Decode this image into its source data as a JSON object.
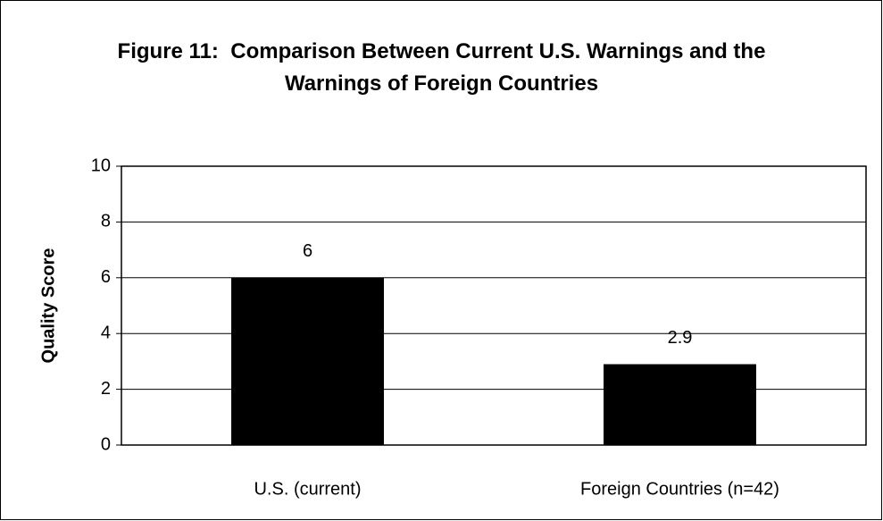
{
  "chart_data": {
    "type": "bar",
    "title": "Figure 11:  Comparison Between Current U.S. Warnings and the Warnings of Foreign Countries",
    "y_label": "Quality Score",
    "categories": [
      "U.S. (current)",
      "Foreign Countries (n=42)"
    ],
    "values": [
      6,
      2.9
    ],
    "color": "#000000",
    "ylim": [
      0,
      10
    ],
    "yticks": [
      0,
      2,
      4,
      6,
      8,
      10
    ],
    "grid": true
  }
}
